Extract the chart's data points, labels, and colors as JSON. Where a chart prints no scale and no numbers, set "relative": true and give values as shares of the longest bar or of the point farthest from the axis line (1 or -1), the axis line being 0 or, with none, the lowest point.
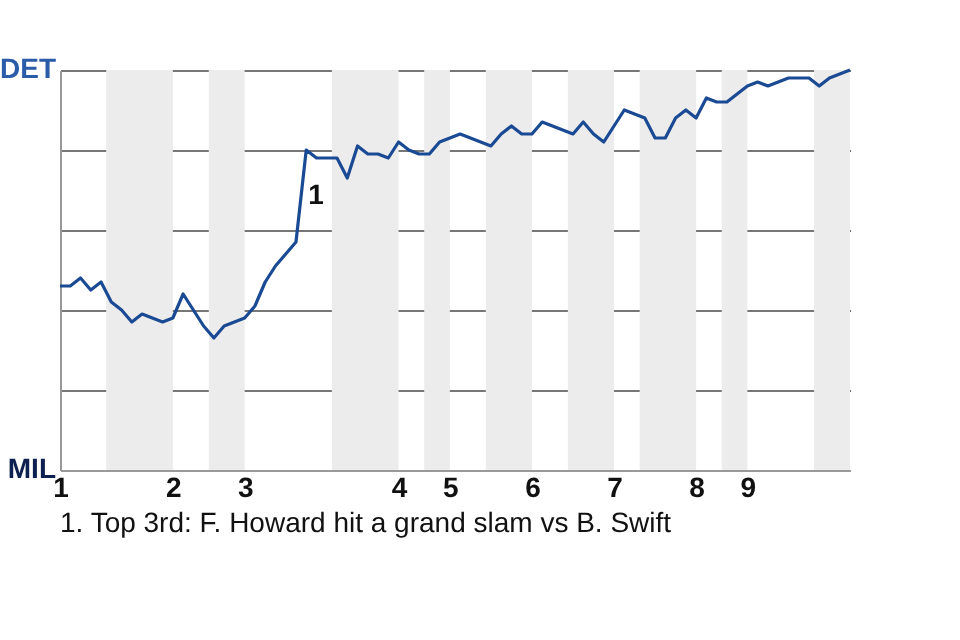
{
  "chart_data": {
    "type": "line",
    "relative": true,
    "categories": [
      "1",
      null,
      null,
      null,
      null,
      null,
      null,
      null,
      null,
      null,
      null,
      "2",
      null,
      null,
      null,
      null,
      null,
      null,
      "3",
      null,
      null,
      null,
      null,
      null,
      null,
      null,
      null,
      null,
      null,
      null,
      null,
      null,
      null,
      "4",
      null,
      null,
      null,
      null,
      "5",
      null,
      null,
      null,
      null,
      null,
      null,
      null,
      "6",
      null,
      null,
      null,
      null,
      null,
      null,
      null,
      "7",
      null,
      null,
      null,
      null,
      null,
      null,
      null,
      "8",
      null,
      null,
      null,
      null,
      "9",
      null,
      null,
      null,
      null,
      null,
      null,
      null,
      null,
      null,
      null
    ],
    "series": [
      {
        "color": "#1a4a94",
        "values": [
          0.46,
          0.46,
          0.48,
          0.45,
          0.47,
          0.42,
          0.4,
          0.37,
          0.39,
          0.38,
          0.37,
          0.38,
          0.44,
          0.4,
          0.36,
          0.33,
          0.36,
          0.37,
          0.38,
          0.41,
          0.47,
          0.51,
          0.54,
          0.57,
          0.8,
          0.78,
          0.78,
          0.78,
          0.73,
          0.81,
          0.79,
          0.79,
          0.78,
          0.82,
          0.8,
          0.79,
          0.79,
          0.82,
          0.83,
          0.84,
          0.83,
          0.82,
          0.81,
          0.84,
          0.86,
          0.84,
          0.84,
          0.87,
          0.86,
          0.85,
          0.84,
          0.87,
          0.84,
          0.82,
          0.86,
          0.9,
          0.89,
          0.88,
          0.83,
          0.83,
          0.88,
          0.9,
          0.88,
          0.93,
          0.92,
          0.92,
          0.94,
          0.96,
          0.97,
          0.96,
          0.97,
          0.98,
          0.98,
          0.98,
          0.96,
          0.98,
          0.99,
          1.0
        ]
      }
    ],
    "grid": "y",
    "annotations": [
      "DET",
      "MIL",
      "1",
      "1. Top 3rd: F. Howard hit a grand slam vs B. Swift"
    ]
  }
}
